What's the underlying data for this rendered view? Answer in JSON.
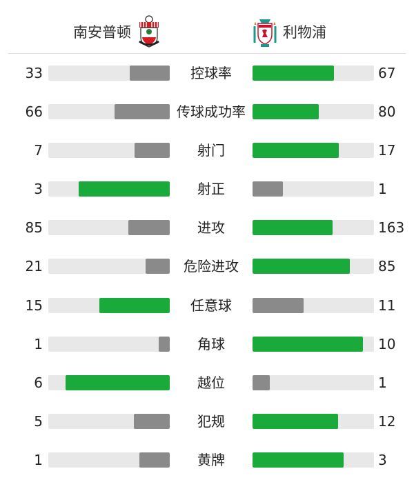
{
  "header": {
    "home": {
      "name": "南安普顿",
      "logo": "southampton-crest"
    },
    "away": {
      "name": "利物浦",
      "logo": "liverpool-crest"
    }
  },
  "colors": {
    "leader": "#1aaa3c",
    "trailer": "#8a8a8a",
    "track": "#e8e8e8"
  },
  "stats": [
    {
      "label": "控球率",
      "home": 33,
      "away": 67
    },
    {
      "label": "传球成功率",
      "home": 66,
      "away": 80
    },
    {
      "label": "射门",
      "home": 7,
      "away": 17
    },
    {
      "label": "射正",
      "home": 3,
      "away": 1
    },
    {
      "label": "进攻",
      "home": 85,
      "away": 163
    },
    {
      "label": "危险进攻",
      "home": 21,
      "away": 85
    },
    {
      "label": "任意球",
      "home": 15,
      "away": 11
    },
    {
      "label": "角球",
      "home": 1,
      "away": 10
    },
    {
      "label": "越位",
      "home": 6,
      "away": 1
    },
    {
      "label": "犯规",
      "home": 5,
      "away": 12
    },
    {
      "label": "黄牌",
      "home": 1,
      "away": 3
    }
  ]
}
